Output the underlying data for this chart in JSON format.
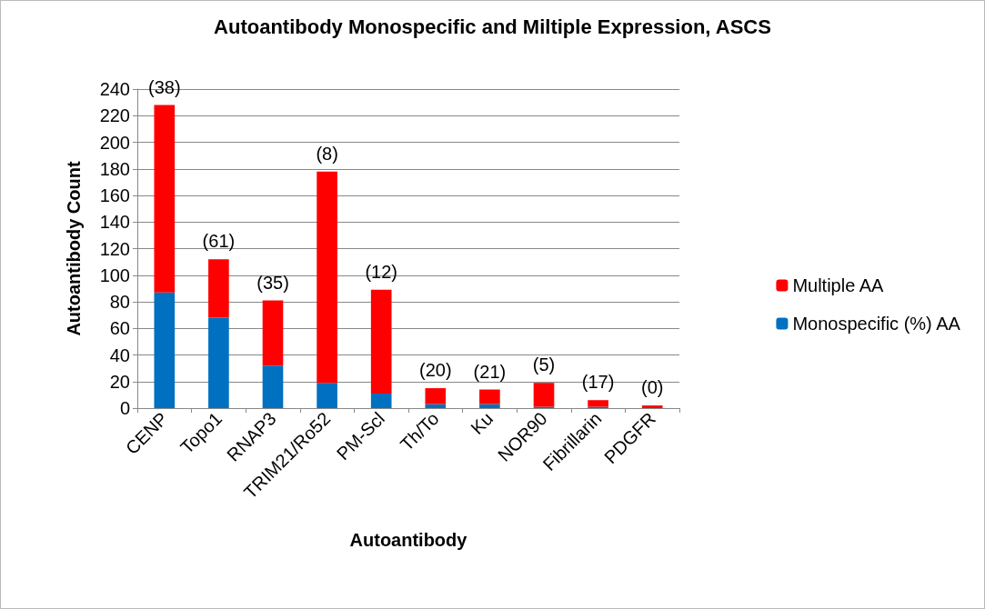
{
  "chart_data": {
    "type": "bar",
    "title": "Autoantibody Monospecific and Miltiple Expression, ASCS",
    "xlabel": "Autoantibody",
    "ylabel": "Autoantibody Count",
    "categories": [
      "CENP",
      "Topo1",
      "RNAP3",
      "TRIM21/Ro52",
      "PM-Scl",
      "Th/To",
      "Ku",
      "NOR90",
      "Fibrillarin",
      "PDGFR"
    ],
    "stacked": true,
    "series": [
      {
        "name": "Monospecific (%) AA",
        "color": "#0070c0",
        "values": [
          87,
          68,
          32,
          19,
          11,
          3,
          3,
          1,
          1,
          0
        ]
      },
      {
        "name": "Multiple AA",
        "color": "#ff0000",
        "values": [
          141,
          44,
          49,
          159,
          78,
          12,
          11,
          18,
          5,
          2
        ]
      }
    ],
    "annotations": [
      {
        "text": "(38)",
        "x": "CENP",
        "y": 228
      },
      {
        "text": "(61)",
        "x": "Topo1",
        "y": 112
      },
      {
        "text": "(35)",
        "x": "RNAP3",
        "y": 81
      },
      {
        "text": "(8)",
        "x": "TRIM21/Ro52",
        "y": 178
      },
      {
        "text": "(12)",
        "x": "PM-Scl",
        "y": 89
      },
      {
        "text": "(20)",
        "x": "Th/To",
        "y": 15
      },
      {
        "text": "(21)",
        "x": "Ku",
        "y": 14
      },
      {
        "text": "(5)",
        "x": "NOR90",
        "y": 19
      },
      {
        "text": "(17)",
        "x": "Fibrillarin",
        "y": 6
      },
      {
        "text": "(0)",
        "x": "PDGFR",
        "y": 2
      }
    ],
    "ylim": [
      0,
      240
    ],
    "yticks": [
      0,
      20,
      40,
      60,
      80,
      100,
      120,
      140,
      160,
      180,
      200,
      220,
      240
    ],
    "grid": "y",
    "legend": "right"
  }
}
